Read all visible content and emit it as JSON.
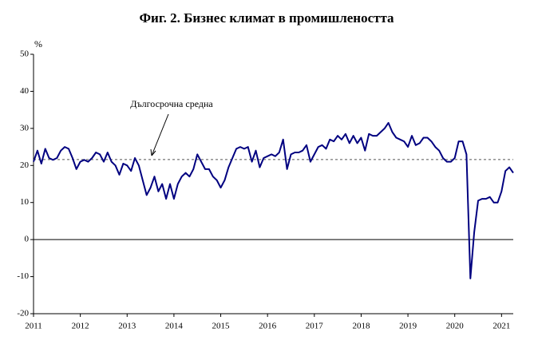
{
  "chart_data": {
    "type": "line",
    "title": "Фиг. 2. Бизнес климат в промишлеността",
    "y_label": "%",
    "annotation": "Дългосрочна средна",
    "average": 21.6,
    "categories": [
      "2011",
      null,
      null,
      null,
      null,
      null,
      null,
      null,
      null,
      null,
      null,
      null,
      "2012",
      null,
      null,
      null,
      null,
      null,
      null,
      null,
      null,
      null,
      null,
      null,
      "2013",
      null,
      null,
      null,
      null,
      null,
      null,
      null,
      null,
      null,
      null,
      null,
      "2014",
      null,
      null,
      null,
      null,
      null,
      null,
      null,
      null,
      null,
      null,
      null,
      "2015",
      null,
      null,
      null,
      null,
      null,
      null,
      null,
      null,
      null,
      null,
      null,
      "2016",
      null,
      null,
      null,
      null,
      null,
      null,
      null,
      null,
      null,
      null,
      null,
      "2017",
      null,
      null,
      null,
      null,
      null,
      null,
      null,
      null,
      null,
      null,
      null,
      "2018",
      null,
      null,
      null,
      null,
      null,
      null,
      null,
      null,
      null,
      null,
      null,
      "2019",
      null,
      null,
      null,
      null,
      null,
      null,
      null,
      null,
      null,
      null,
      null,
      "2020",
      null,
      null,
      null,
      null,
      null,
      null,
      null,
      null,
      null,
      null,
      null,
      "2021",
      null,
      null,
      null
    ],
    "series": [
      {
        "color": "#000080",
        "values": [
          21,
          24,
          20.5,
          24.5,
          22,
          21.5,
          22,
          24,
          25,
          24.5,
          22,
          19,
          21,
          21.5,
          21,
          22,
          23.5,
          23,
          21,
          23.5,
          21,
          20,
          17.5,
          20.5,
          20,
          18.5,
          22,
          20,
          16,
          12,
          14,
          17,
          13,
          15,
          11,
          15,
          11,
          15,
          17,
          18,
          17,
          19,
          23,
          21,
          19,
          19,
          17,
          16,
          14,
          16,
          19.5,
          22,
          24.5,
          25,
          24.5,
          25,
          21,
          24,
          19.5,
          22,
          22.5,
          23,
          22.5,
          23.5,
          27,
          19,
          23,
          23.5,
          23.5,
          24,
          25.5,
          21,
          23,
          25,
          25.5,
          24.5,
          27,
          26.5,
          28,
          27,
          28.5,
          26,
          28,
          26,
          27.5,
          24,
          28.5,
          28,
          28,
          29,
          30,
          31.5,
          29,
          27.5,
          27,
          26.5,
          25,
          28,
          25.5,
          26,
          27.5,
          27.5,
          26.5,
          25,
          24,
          22,
          21,
          21,
          22,
          26.5,
          26.5,
          23,
          -10.5,
          2,
          10.5,
          11,
          11,
          11.5,
          10,
          10,
          13,
          18.5,
          19.5,
          18
        ]
      }
    ],
    "ylim": [
      -20,
      50
    ],
    "yticks": [
      -20,
      -10,
      0,
      10,
      20,
      30,
      40,
      50
    ]
  }
}
